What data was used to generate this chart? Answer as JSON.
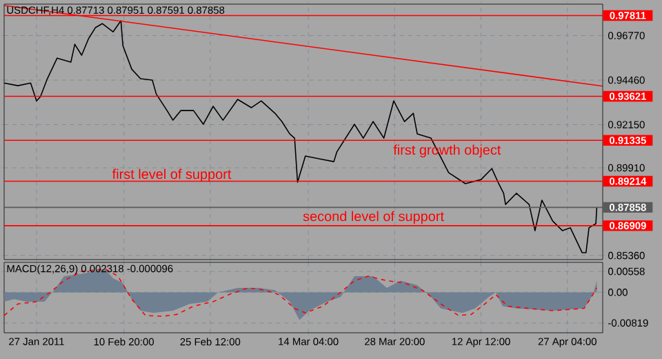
{
  "chart_data": [
    {
      "type": "line",
      "title": "USDCHF,H4  0.87713 0.87951 0.87591 0.87858",
      "series": [
        {
          "color": "#000000",
          "x": [
            "2011-01-21T12:00",
            "2011-01-23T20:00",
            "2011-01-26T00:00",
            "2011-01-27T00:00",
            "2011-01-27T16:00",
            "2011-01-28T20:00",
            "2011-01-30T12:00",
            "2011-02-01T20:00",
            "2011-02-02T12:00",
            "2011-02-03T16:00",
            "2011-02-04T20:00",
            "2011-02-06T00:00",
            "2011-02-07T04:00",
            "2011-02-09T00:00",
            "2011-02-10T08:00",
            "2011-02-10T16:00",
            "2011-02-12T04:00",
            "2011-02-13T16:00",
            "2011-02-15T16:00",
            "2011-02-16T08:00",
            "2011-02-18T04:00",
            "2011-02-19T04:00",
            "2011-02-20T12:00",
            "2011-02-22T16:00",
            "2011-02-24T08:00",
            "2011-02-26T00:00",
            "2011-02-27T16:00",
            "2011-03-02T04:00",
            "2011-03-04T12:00",
            "2011-03-06T04:00",
            "2011-03-08T12:00",
            "2011-03-09T16:00",
            "2011-03-11T00:00",
            "2011-03-11T20:00",
            "2011-03-12T08:00",
            "2011-03-13T16:00",
            "2011-03-16T00:00",
            "2011-03-18T12:00",
            "2011-03-19T00:00",
            "2011-03-22T00:00",
            "2011-03-23T12:00",
            "2011-03-25T04:00",
            "2011-03-27T00:00",
            "2011-03-28T16:00",
            "2011-03-30T12:00",
            "2011-04-01T00:00",
            "2011-04-01T16:00",
            "2011-04-04T00:00",
            "2011-04-07T00:00",
            "2011-04-09T20:00",
            "2011-04-12T12:00",
            "2011-04-14T08:00",
            "2011-04-15T12:00",
            "2011-04-16T08:00",
            "2011-04-16T16:00",
            "2011-04-18T12:00",
            "2011-04-20T16:00",
            "2011-04-21T16:00",
            "2011-04-22T20:00",
            "2011-04-24T16:00",
            "2011-04-26T08:00",
            "2011-04-27T16:00",
            "2011-04-29T16:00",
            "2011-04-30T08:00",
            "2011-04-30T20:00",
            "2011-05-02T00:00",
            "2011-05-02T04:00"
          ],
          "values": [
            0.9431,
            0.9417,
            0.9431,
            0.9338,
            0.936,
            0.9453,
            0.956,
            0.9539,
            0.9632,
            0.9575,
            0.9661,
            0.9718,
            0.9739,
            0.9696,
            0.9754,
            0.9625,
            0.9503,
            0.9453,
            0.9446,
            0.9374,
            0.9288,
            0.9238,
            0.9288,
            0.9288,
            0.9217,
            0.931,
            0.9238,
            0.9346,
            0.9303,
            0.9338,
            0.9274,
            0.9231,
            0.9167,
            0.9145,
            0.8916,
            0.9052,
            0.9038,
            0.9023,
            0.9073,
            0.9217,
            0.9145,
            0.9231,
            0.9145,
            0.9338,
            0.9231,
            0.9274,
            0.9167,
            0.9145,
            0.8966,
            0.8909,
            0.893,
            0.8987,
            0.8909,
            0.8859,
            0.8801,
            0.8859,
            0.8801,
            0.8665,
            0.8823,
            0.8715,
            0.8665,
            0.868,
            0.8551,
            0.8551,
            0.868,
            0.8701,
            0.8787
          ]
        },
        {
          "color": "#ff0000",
          "x": [
            "2011-01-21T12:00",
            "2011-05-03T04:00"
          ],
          "values": [
            0.9833,
            0.9415
          ]
        }
      ],
      "xlim": [
        "2011-01-21T12:00",
        "2011-05-03T04:00"
      ],
      "ylim": [
        0.8515,
        0.984
      ],
      "xticks": [
        {
          "value": "2011-01-27",
          "label": null
        },
        {
          "value": "2011-02-10T20:00",
          "label": null
        },
        {
          "value": "2011-02-25T12:00",
          "label": null
        },
        {
          "value": "2011-03-14T04:00",
          "label": null
        },
        {
          "value": "2011-03-28T20:00",
          "label": null
        },
        {
          "value": "2011-04-12T12:00",
          "label": null
        },
        {
          "value": "2011-04-27T04:00",
          "label": null
        }
      ],
      "yticks": [
        {
          "value": 0.9677,
          "label": "0.96770"
        },
        {
          "value": 0.9446,
          "label": "0.94460"
        },
        {
          "value": 0.9215,
          "label": "0.92150"
        },
        {
          "value": 0.8991,
          "label": "0.89910"
        },
        {
          "value": 0.8536,
          "label": "0.85360"
        }
      ],
      "tick_labels": "y",
      "grid": true,
      "ref_lines": [
        {
          "axis": "y",
          "value": 0.97811,
          "label": "0.97811",
          "color": "#ff0000"
        },
        {
          "axis": "y",
          "value": 0.93621,
          "label": "0.93621",
          "color": "#ff0000"
        },
        {
          "axis": "y",
          "value": 0.91335,
          "label": "0.91335",
          "color": "#ff0000"
        },
        {
          "axis": "y",
          "value": 0.89214,
          "label": "0.89214",
          "color": "#ff0000"
        },
        {
          "axis": "y",
          "value": 0.86909,
          "label": "0.86909",
          "color": "#ff0000"
        },
        {
          "axis": "y",
          "value": 0.87858,
          "label": "0.87858",
          "color": "#5a5a5a"
        }
      ],
      "annotations": [
        "first level of support",
        "first growth object",
        "second level of support"
      ]
    },
    {
      "type": "line",
      "title": "MACD(12,26,9) 0.002318 -0.000096",
      "series": [
        {
          "type": "area",
          "color": "#6f8092",
          "x": [
            "2011-01-21T12:00",
            "2011-01-23T04:00",
            "2011-01-25T08:00",
            "2011-01-28T08:00",
            "2011-01-30T00:00",
            "2011-01-31T16:00",
            "2011-02-03T16:00",
            "2011-02-07T16:00",
            "2011-02-09T00:00",
            "2011-02-10T16:00",
            "2011-02-12T04:00",
            "2011-02-13T16:00",
            "2011-02-15T20:00",
            "2011-02-19T04:00",
            "2011-02-22T00:00",
            "2011-02-25T00:00",
            "2011-02-26T20:00",
            "2011-03-02T04:00",
            "2011-03-05T20:00",
            "2011-03-08T12:00",
            "2011-03-11T00:00",
            "2011-03-12T16:00",
            "2011-03-14T08:00",
            "2011-03-17T08:00",
            "2011-03-19T16:00",
            "2011-03-22T00:00",
            "2011-03-25T04:00",
            "2011-03-27T12:00",
            "2011-03-29T20:00",
            "2011-04-01T16:00",
            "2011-04-04T00:00",
            "2011-04-05T16:00",
            "2011-04-09T08:00",
            "2011-04-11T12:00",
            "2011-04-13T20:00",
            "2011-04-15T00:00",
            "2011-04-16T04:00",
            "2011-04-18T12:00",
            "2011-04-24T16:00",
            "2011-04-30T00:00",
            "2011-05-01T12:00",
            "2011-05-02T04:00"
          ],
          "values": [
            -0.0025,
            -0.0018,
            -0.0025,
            -0.0025,
            0.0006,
            0.0043,
            0.0049,
            0.0062,
            0.0037,
            0.0025,
            -0.0018,
            -0.0049,
            -0.0055,
            -0.0049,
            -0.0031,
            -0.0025,
            0.0,
            0.0012,
            0.0012,
            0.0006,
            -0.0025,
            -0.0074,
            -0.0049,
            -0.0025,
            -0.0012,
            0.0043,
            0.0043,
            0.0012,
            0.0031,
            0.0019,
            -0.0012,
            -0.0043,
            -0.0055,
            -0.0043,
            -0.0012,
            0.0,
            -0.0037,
            -0.0043,
            -0.0049,
            -0.0043,
            -0.0006,
            0.0031
          ]
        },
        {
          "type": "line",
          "color": "#ff0000",
          "line_style": "dashed",
          "x": [
            "2011-01-21T12:00",
            "2011-01-23T20:00",
            "2011-01-27T00:00",
            "2011-01-29T08:00",
            "2011-01-31T16:00",
            "2011-02-03T16:00",
            "2011-02-07T16:00",
            "2011-02-09T20:00",
            "2011-02-12T04:00",
            "2011-02-14T12:00",
            "2011-02-17T12:00",
            "2011-02-19T20:00",
            "2011-02-22T16:00",
            "2011-02-26T00:00",
            "2011-02-28T16:00",
            "2011-03-04T00:00",
            "2011-03-06T16:00",
            "2011-03-09T04:00",
            "2011-03-11T20:00",
            "2011-03-13T16:00",
            "2011-03-16T16:00",
            "2011-03-19T16:00",
            "2011-03-22T00:00",
            "2011-03-24T08:00",
            "2011-03-27T12:00",
            "2011-03-30T12:00",
            "2011-04-02T12:00",
            "2011-04-05T16:00",
            "2011-04-08T16:00",
            "2011-04-10T20:00",
            "2011-04-13T04:00",
            "2011-04-15T00:00",
            "2011-04-17T00:00",
            "2011-04-20T16:00",
            "2011-04-24T16:00",
            "2011-04-30T00:00",
            "2011-05-01T12:00",
            "2011-05-02T04:00"
          ],
          "values": [
            -0.0062,
            -0.0031,
            -0.0025,
            0.0,
            0.0031,
            0.0056,
            0.0062,
            0.0043,
            -0.0018,
            -0.0062,
            -0.0064,
            -0.0059,
            -0.0037,
            -0.0025,
            -0.0006,
            0.0012,
            0.0006,
            -0.0006,
            -0.0043,
            -0.0055,
            -0.0037,
            0.0,
            0.0031,
            0.0043,
            0.0031,
            0.0025,
            0.0006,
            -0.0031,
            -0.0062,
            -0.0059,
            -0.0031,
            -0.0006,
            -0.0037,
            -0.0043,
            -0.0049,
            -0.0043,
            -0.0006,
            0.0012
          ]
        }
      ],
      "xlim": [
        "2011-01-21T12:00",
        "2011-05-03T04:00"
      ],
      "ylim": [
        -0.0108,
        0.008
      ],
      "xticks": [
        {
          "value": "2011-01-27",
          "label": "27 Jan 2011"
        },
        {
          "value": "2011-02-10T20:00",
          "label": "10 Feb 20:00"
        },
        {
          "value": "2011-02-25T12:00",
          "label": "25 Feb 12:00"
        },
        {
          "value": "2011-03-14T04:00",
          "label": "14 Mar 04:00"
        },
        {
          "value": "2011-03-28T20:00",
          "label": "28 Mar 20:00"
        },
        {
          "value": "2011-04-12T12:00",
          "label": "12 Apr 12:00"
        },
        {
          "value": "2011-04-27T04:00",
          "label": "27 Apr 04:00"
        }
      ],
      "yticks": [
        {
          "value": 0.00558,
          "label": "0.00558"
        },
        {
          "value": 0,
          "label": "0.00"
        },
        {
          "value": -0.00819,
          "label": "-0.00819"
        }
      ],
      "grid": true
    }
  ]
}
